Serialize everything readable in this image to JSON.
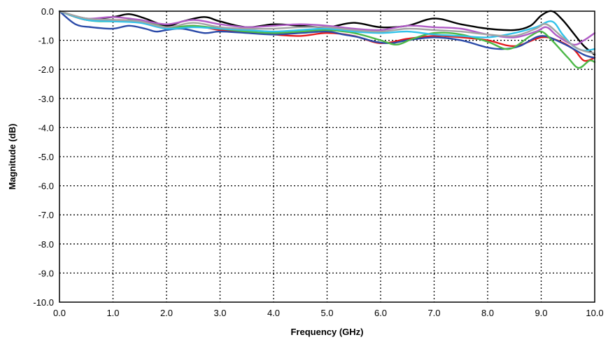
{
  "chart_data": {
    "type": "line",
    "title": "",
    "xlabel": "Frequency (GHz)",
    "ylabel": "Magnitude (dB)",
    "xlim": [
      0,
      10
    ],
    "ylim": [
      -10,
      0
    ],
    "x_ticks": [
      "0.0",
      "1.0",
      "2.0",
      "3.0",
      "4.0",
      "5.0",
      "6.0",
      "7.0",
      "8.0",
      "9.0",
      "10.0"
    ],
    "y_ticks": [
      "0.0",
      "-1.0",
      "-2.0",
      "-3.0",
      "-4.0",
      "-5.0",
      "-6.0",
      "-7.0",
      "-8.0",
      "-9.0",
      "-10.0"
    ],
    "grid": "dotted",
    "legend": "none",
    "series": [
      {
        "color": "#000000",
        "points": [
          [
            0,
            0
          ],
          [
            0.5,
            -0.25
          ],
          [
            1.0,
            -0.2
          ],
          [
            1.3,
            -0.1
          ],
          [
            1.6,
            -0.25
          ],
          [
            2.0,
            -0.5
          ],
          [
            2.3,
            -0.35
          ],
          [
            2.7,
            -0.2
          ],
          [
            3.0,
            -0.35
          ],
          [
            3.5,
            -0.55
          ],
          [
            4.0,
            -0.45
          ],
          [
            4.5,
            -0.5
          ],
          [
            5.0,
            -0.55
          ],
          [
            5.5,
            -0.4
          ],
          [
            6.0,
            -0.55
          ],
          [
            6.5,
            -0.5
          ],
          [
            7.0,
            -0.25
          ],
          [
            7.5,
            -0.45
          ],
          [
            8.0,
            -0.6
          ],
          [
            8.5,
            -0.65
          ],
          [
            8.8,
            -0.5
          ],
          [
            9.0,
            -0.15
          ],
          [
            9.2,
            0.0
          ],
          [
            9.4,
            -0.3
          ],
          [
            9.6,
            -0.75
          ],
          [
            9.8,
            -1.2
          ],
          [
            10.0,
            -1.5
          ]
        ]
      },
      {
        "color": "#e41a1c",
        "points": [
          [
            0,
            0
          ],
          [
            0.5,
            -0.3
          ],
          [
            1.0,
            -0.3
          ],
          [
            1.5,
            -0.35
          ],
          [
            2.0,
            -0.6
          ],
          [
            2.5,
            -0.5
          ],
          [
            3.0,
            -0.65
          ],
          [
            3.5,
            -0.7
          ],
          [
            4.0,
            -0.8
          ],
          [
            4.5,
            -0.85
          ],
          [
            5.0,
            -0.75
          ],
          [
            5.5,
            -0.85
          ],
          [
            6.0,
            -1.1
          ],
          [
            6.5,
            -0.95
          ],
          [
            7.0,
            -0.85
          ],
          [
            7.5,
            -0.9
          ],
          [
            8.0,
            -1.0
          ],
          [
            8.5,
            -1.2
          ],
          [
            9.0,
            -0.9
          ],
          [
            9.3,
            -1.0
          ],
          [
            9.6,
            -1.3
          ],
          [
            9.8,
            -1.7
          ],
          [
            10.0,
            -1.6
          ]
        ]
      },
      {
        "color": "#2b4aa8",
        "points": [
          [
            0,
            0
          ],
          [
            0.3,
            -0.45
          ],
          [
            0.6,
            -0.55
          ],
          [
            1.0,
            -0.6
          ],
          [
            1.3,
            -0.5
          ],
          [
            1.6,
            -0.6
          ],
          [
            1.8,
            -0.7
          ],
          [
            2.0,
            -0.65
          ],
          [
            2.3,
            -0.6
          ],
          [
            2.7,
            -0.75
          ],
          [
            3.0,
            -0.7
          ],
          [
            3.5,
            -0.75
          ],
          [
            4.0,
            -0.8
          ],
          [
            4.5,
            -0.75
          ],
          [
            5.0,
            -0.7
          ],
          [
            5.3,
            -0.8
          ],
          [
            5.6,
            -0.9
          ],
          [
            5.9,
            -1.05
          ],
          [
            6.2,
            -1.1
          ],
          [
            6.5,
            -1.0
          ],
          [
            7.0,
            -0.9
          ],
          [
            7.5,
            -1.0
          ],
          [
            8.0,
            -1.25
          ],
          [
            8.3,
            -1.3
          ],
          [
            8.6,
            -1.2
          ],
          [
            9.0,
            -0.85
          ],
          [
            9.4,
            -1.1
          ],
          [
            9.8,
            -1.5
          ],
          [
            10.0,
            -1.6
          ]
        ]
      },
      {
        "color": "#4db848",
        "points": [
          [
            0,
            0
          ],
          [
            0.5,
            -0.3
          ],
          [
            1.0,
            -0.35
          ],
          [
            1.5,
            -0.3
          ],
          [
            2.0,
            -0.55
          ],
          [
            2.5,
            -0.5
          ],
          [
            3.0,
            -0.6
          ],
          [
            3.5,
            -0.7
          ],
          [
            4.0,
            -0.75
          ],
          [
            4.5,
            -0.7
          ],
          [
            5.0,
            -0.65
          ],
          [
            5.5,
            -0.75
          ],
          [
            6.0,
            -1.0
          ],
          [
            6.3,
            -1.15
          ],
          [
            6.6,
            -0.95
          ],
          [
            7.0,
            -0.75
          ],
          [
            7.5,
            -0.8
          ],
          [
            8.0,
            -1.05
          ],
          [
            8.4,
            -1.3
          ],
          [
            8.8,
            -0.85
          ],
          [
            9.0,
            -0.7
          ],
          [
            9.2,
            -1.0
          ],
          [
            9.5,
            -1.6
          ],
          [
            9.7,
            -1.95
          ],
          [
            9.9,
            -1.7
          ],
          [
            10.0,
            -1.75
          ]
        ]
      },
      {
        "color": "#b05cc6",
        "points": [
          [
            0,
            0
          ],
          [
            0.5,
            -0.25
          ],
          [
            1.0,
            -0.2
          ],
          [
            1.5,
            -0.3
          ],
          [
            2.0,
            -0.45
          ],
          [
            2.5,
            -0.3
          ],
          [
            3.0,
            -0.45
          ],
          [
            3.5,
            -0.55
          ],
          [
            4.0,
            -0.5
          ],
          [
            4.5,
            -0.45
          ],
          [
            5.0,
            -0.5
          ],
          [
            5.5,
            -0.6
          ],
          [
            6.0,
            -0.65
          ],
          [
            6.5,
            -0.5
          ],
          [
            7.0,
            -0.55
          ],
          [
            7.5,
            -0.6
          ],
          [
            8.0,
            -0.8
          ],
          [
            8.5,
            -0.9
          ],
          [
            8.9,
            -0.7
          ],
          [
            9.1,
            -0.55
          ],
          [
            9.3,
            -0.85
          ],
          [
            9.6,
            -1.15
          ],
          [
            9.8,
            -1.0
          ],
          [
            10.0,
            -0.75
          ]
        ]
      },
      {
        "color": "#31c3ea",
        "points": [
          [
            0,
            0
          ],
          [
            0.5,
            -0.3
          ],
          [
            1.0,
            -0.35
          ],
          [
            1.5,
            -0.4
          ],
          [
            2.0,
            -0.6
          ],
          [
            2.5,
            -0.55
          ],
          [
            3.0,
            -0.6
          ],
          [
            3.5,
            -0.65
          ],
          [
            4.0,
            -0.7
          ],
          [
            4.5,
            -0.65
          ],
          [
            5.0,
            -0.6
          ],
          [
            5.5,
            -0.7
          ],
          [
            6.0,
            -0.75
          ],
          [
            6.5,
            -0.7
          ],
          [
            7.0,
            -0.8
          ],
          [
            7.5,
            -0.85
          ],
          [
            8.0,
            -0.9
          ],
          [
            8.5,
            -0.75
          ],
          [
            8.9,
            -0.55
          ],
          [
            9.2,
            -0.35
          ],
          [
            9.4,
            -0.8
          ],
          [
            9.6,
            -1.2
          ],
          [
            9.8,
            -1.35
          ],
          [
            10.0,
            -1.3
          ]
        ]
      },
      {
        "color": "#a3a3a3",
        "points": [
          [
            0,
            0
          ],
          [
            0.5,
            -0.25
          ],
          [
            1.0,
            -0.3
          ],
          [
            1.5,
            -0.35
          ],
          [
            2.0,
            -0.55
          ],
          [
            2.5,
            -0.4
          ],
          [
            3.0,
            -0.55
          ],
          [
            3.5,
            -0.6
          ],
          [
            4.0,
            -0.6
          ],
          [
            4.5,
            -0.55
          ],
          [
            5.0,
            -0.55
          ],
          [
            5.5,
            -0.65
          ],
          [
            6.0,
            -0.7
          ],
          [
            6.5,
            -0.6
          ],
          [
            7.0,
            -0.65
          ],
          [
            7.5,
            -0.7
          ],
          [
            8.0,
            -0.8
          ],
          [
            8.5,
            -0.85
          ],
          [
            8.9,
            -0.6
          ],
          [
            9.1,
            -0.45
          ],
          [
            9.4,
            -0.9
          ],
          [
            9.7,
            -1.3
          ],
          [
            10.0,
            -1.45
          ]
        ]
      }
    ]
  }
}
